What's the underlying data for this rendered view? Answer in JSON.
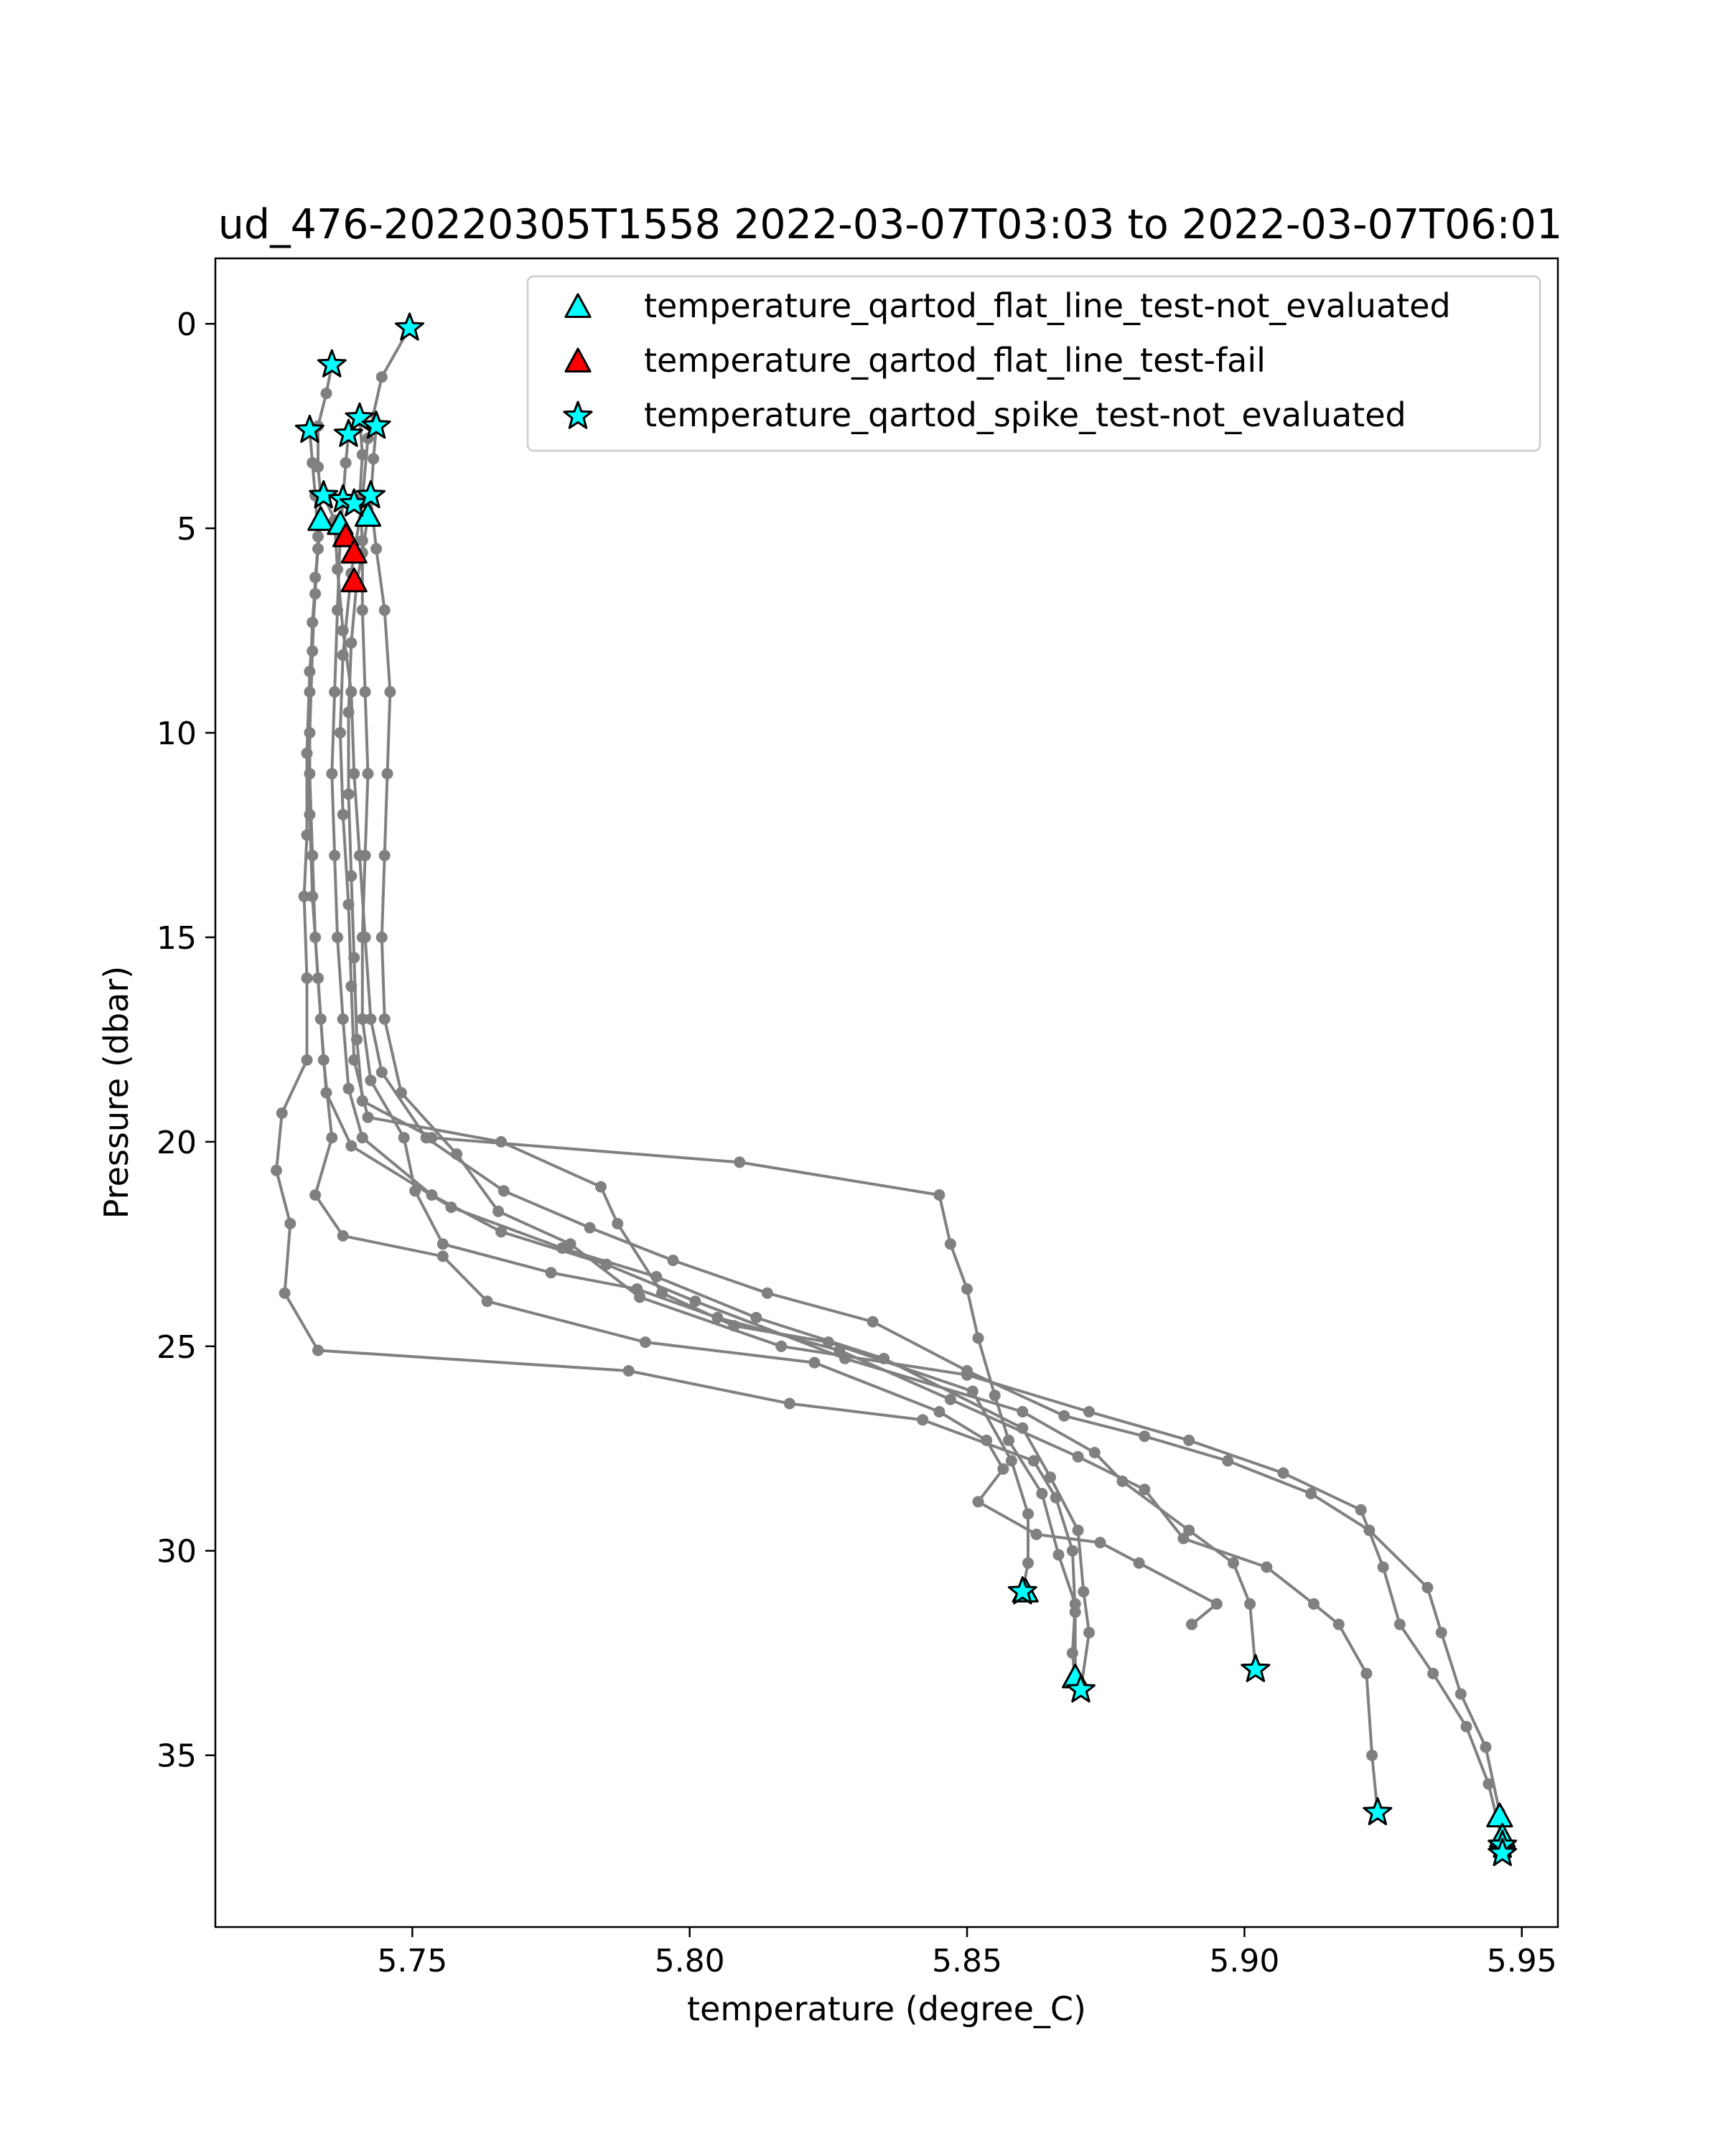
{
  "chart_data": {
    "type": "scatter",
    "title": "ud_476-20220305T1558 2022-03-07T03:03 to 2022-03-07T06:01",
    "xlabel": "temperature (degree_C)",
    "ylabel": "Pressure (dbar)",
    "xlim": [
      5.7145,
      5.9565
    ],
    "ylim": [
      39.2,
      -1.6
    ],
    "y_inverted": true,
    "grid": false,
    "legend_position": "upper-right",
    "x_ticks": [
      5.75,
      5.8,
      5.85,
      5.9,
      5.95
    ],
    "x_tick_labels": [
      "5.75",
      "5.80",
      "5.85",
      "5.90",
      "5.95"
    ],
    "y_ticks": [
      0,
      5,
      10,
      15,
      20,
      25,
      30,
      35
    ],
    "y_tick_labels": [
      "0",
      "5",
      "10",
      "15",
      "20",
      "25",
      "30",
      "35"
    ],
    "profile_color": "#808080",
    "profiles": [
      [
        [
          5.7495,
          0.1
        ],
        [
          5.7445,
          1.3
        ],
        [
          5.742,
          2.8
        ],
        [
          5.741,
          4.3
        ],
        [
          5.739,
          6.1
        ],
        [
          5.7375,
          8.1
        ],
        [
          5.737,
          10.0
        ],
        [
          5.7375,
          12.0
        ],
        [
          5.7385,
          14.2
        ],
        [
          5.739,
          16.2
        ],
        [
          5.7395,
          18.0
        ],
        [
          5.742,
          19.4
        ],
        [
          5.766,
          20.0
        ],
        [
          5.784,
          21.1
        ],
        [
          5.787,
          22.0
        ],
        [
          5.795,
          23.7
        ],
        [
          5.808,
          24.5
        ],
        [
          5.825,
          24.9
        ],
        [
          5.851,
          26.1
        ],
        [
          5.858,
          27.8
        ],
        [
          5.861,
          29.1
        ],
        [
          5.861,
          30.3
        ],
        [
          5.86,
          31.0
        ]
      ],
      [
        [
          5.7355,
          1.0
        ],
        [
          5.7345,
          1.7
        ],
        [
          5.733,
          2.5
        ],
        [
          5.733,
          3.5
        ],
        [
          5.7335,
          4.2
        ],
        [
          5.733,
          5.5
        ],
        [
          5.732,
          7.3
        ],
        [
          5.7315,
          9.0
        ],
        [
          5.7315,
          11.0
        ],
        [
          5.732,
          13.0
        ],
        [
          5.7325,
          15.0
        ],
        [
          5.7335,
          17.0
        ],
        [
          5.7345,
          18.8
        ],
        [
          5.739,
          20.1
        ],
        [
          5.757,
          21.6
        ],
        [
          5.777,
          22.6
        ],
        [
          5.794,
          23.3
        ],
        [
          5.812,
          24.3
        ],
        [
          5.835,
          25.3
        ],
        [
          5.86,
          27.0
        ],
        [
          5.865,
          28.2
        ],
        [
          5.87,
          29.5
        ],
        [
          5.871,
          31.0
        ],
        [
          5.872,
          32.0
        ],
        [
          5.8705,
          33.4
        ]
      ],
      [
        [
          5.7315,
          2.6
        ],
        [
          5.732,
          3.4
        ],
        [
          5.7325,
          4.2
        ],
        [
          5.733,
          5.2
        ],
        [
          5.7325,
          6.6
        ],
        [
          5.7315,
          8.5
        ],
        [
          5.731,
          10.5
        ],
        [
          5.731,
          12.5
        ],
        [
          5.7305,
          14.0
        ],
        [
          5.731,
          16.0
        ],
        [
          5.731,
          18.0
        ],
        [
          5.7265,
          19.3
        ],
        [
          5.7255,
          20.7
        ],
        [
          5.728,
          22.0
        ],
        [
          5.727,
          23.7
        ],
        [
          5.733,
          25.1
        ],
        [
          5.789,
          25.6
        ],
        [
          5.818,
          26.4
        ],
        [
          5.842,
          26.8
        ],
        [
          5.862,
          27.8
        ],
        [
          5.866,
          28.7
        ],
        [
          5.869,
          30.0
        ],
        [
          5.8695,
          31.5
        ],
        [
          5.8695,
          33.1
        ]
      ],
      [
        [
          5.7385,
          2.7
        ],
        [
          5.738,
          3.4
        ],
        [
          5.7375,
          4.3
        ],
        [
          5.737,
          5.2
        ],
        [
          5.7365,
          7.0
        ],
        [
          5.736,
          9.0
        ],
        [
          5.7355,
          11.0
        ],
        [
          5.736,
          13.0
        ],
        [
          5.7365,
          15.0
        ],
        [
          5.7375,
          17.0
        ],
        [
          5.7385,
          18.7
        ],
        [
          5.741,
          19.9
        ],
        [
          5.7535,
          21.3
        ],
        [
          5.766,
          22.2
        ],
        [
          5.785,
          23.0
        ],
        [
          5.801,
          23.9
        ],
        [
          5.828,
          25.3
        ],
        [
          5.86,
          26.6
        ],
        [
          5.873,
          27.6
        ],
        [
          5.878,
          28.3
        ],
        [
          5.89,
          29.5
        ],
        [
          5.898,
          30.3
        ],
        [
          5.901,
          31.3
        ],
        [
          5.902,
          32.9
        ]
      ],
      [
        [
          5.7405,
          2.3
        ],
        [
          5.741,
          3.2
        ],
        [
          5.7405,
          4.3
        ],
        [
          5.741,
          5.3
        ],
        [
          5.741,
          7.0
        ],
        [
          5.7415,
          9.0
        ],
        [
          5.742,
          11.0
        ],
        [
          5.7415,
          13.0
        ],
        [
          5.741,
          15.0
        ],
        [
          5.741,
          17.0
        ],
        [
          5.7425,
          18.5
        ],
        [
          5.7485,
          19.9
        ],
        [
          5.7505,
          21.2
        ],
        [
          5.7555,
          22.5
        ],
        [
          5.775,
          23.2
        ],
        [
          5.7905,
          23.6
        ],
        [
          5.805,
          24.3
        ],
        [
          5.827,
          25.1
        ],
        [
          5.847,
          26.3
        ],
        [
          5.87,
          27.7
        ],
        [
          5.882,
          28.5
        ],
        [
          5.889,
          29.7
        ],
        [
          5.904,
          30.4
        ],
        [
          5.9125,
          31.3
        ],
        [
          5.917,
          31.8
        ],
        [
          5.922,
          33.0
        ],
        [
          5.923,
          35.0
        ],
        [
          5.924,
          36.4
        ]
      ],
      [
        [
          5.7435,
          2.5
        ],
        [
          5.743,
          3.3
        ],
        [
          5.7425,
          4.3
        ],
        [
          5.7435,
          5.5
        ],
        [
          5.745,
          7.0
        ],
        [
          5.746,
          9.0
        ],
        [
          5.7455,
          11.0
        ],
        [
          5.745,
          13.0
        ],
        [
          5.7445,
          15.0
        ],
        [
          5.745,
          17.0
        ],
        [
          5.748,
          18.8
        ],
        [
          5.758,
          20.3
        ],
        [
          5.7655,
          21.7
        ],
        [
          5.7785,
          22.5
        ],
        [
          5.791,
          23.8
        ],
        [
          5.8165,
          25.0
        ],
        [
          5.85,
          25.7
        ],
        [
          5.872,
          26.6
        ],
        [
          5.89,
          27.3
        ],
        [
          5.907,
          28.1
        ],
        [
          5.921,
          29.0
        ],
        [
          5.925,
          30.4
        ],
        [
          5.928,
          31.8
        ],
        [
          5.934,
          33.0
        ],
        [
          5.94,
          34.3
        ],
        [
          5.944,
          35.7
        ],
        [
          5.9465,
          37.1
        ]
      ],
      [
        [
          5.734,
          4.2
        ],
        [
          5.736,
          4.8
        ],
        [
          5.7365,
          6.0
        ],
        [
          5.7375,
          7.5
        ],
        [
          5.739,
          9.0
        ],
        [
          5.7395,
          11.0
        ],
        [
          5.7405,
          13.0
        ],
        [
          5.7415,
          15.0
        ],
        [
          5.7425,
          17.0
        ],
        [
          5.7445,
          18.3
        ],
        [
          5.7525,
          19.9
        ],
        [
          5.7665,
          21.2
        ],
        [
          5.782,
          22.1
        ],
        [
          5.797,
          22.9
        ],
        [
          5.814,
          23.7
        ],
        [
          5.833,
          24.4
        ],
        [
          5.85,
          25.6
        ],
        [
          5.8675,
          26.7
        ],
        [
          5.882,
          27.2
        ],
        [
          5.897,
          27.8
        ],
        [
          5.912,
          28.6
        ],
        [
          5.9225,
          29.5
        ],
        [
          5.933,
          30.9
        ],
        [
          5.9355,
          32.0
        ],
        [
          5.939,
          33.5
        ],
        [
          5.9435,
          34.8
        ],
        [
          5.946,
          36.4
        ]
      ],
      [
        [
          5.7425,
          4.2
        ],
        [
          5.742,
          4.7
        ],
        [
          5.741,
          5.6
        ],
        [
          5.74,
          6.3
        ],
        [
          5.739,
          7.8
        ],
        [
          5.7385,
          9.5
        ],
        [
          5.7385,
          11.5
        ],
        [
          5.739,
          13.5
        ],
        [
          5.7395,
          15.5
        ],
        [
          5.74,
          17.5
        ],
        [
          5.741,
          19.0
        ],
        [
          5.7535,
          19.9
        ],
        [
          5.809,
          20.5
        ],
        [
          5.845,
          21.3
        ],
        [
          5.847,
          22.5
        ],
        [
          5.85,
          23.6
        ],
        [
          5.852,
          24.8
        ],
        [
          5.855,
          26.2
        ],
        [
          5.8575,
          27.3
        ],
        [
          5.8635,
          28.6
        ],
        [
          5.8665,
          30.1
        ],
        [
          5.8695,
          31.3
        ],
        [
          5.869,
          32.5
        ],
        [
          5.8695,
          33.2
        ]
      ],
      [
        [
          5.7335,
          4.8
        ],
        [
          5.7325,
          6.2
        ],
        [
          5.732,
          8.0
        ],
        [
          5.7315,
          10.0
        ],
        [
          5.7315,
          12.0
        ],
        [
          5.732,
          14.0
        ],
        [
          5.733,
          16.0
        ],
        [
          5.734,
          18.0
        ],
        [
          5.7355,
          19.9
        ],
        [
          5.7325,
          21.3
        ],
        [
          5.7375,
          22.3
        ],
        [
          5.7555,
          22.8
        ],
        [
          5.7635,
          23.9
        ],
        [
          5.792,
          24.9
        ],
        [
          5.8225,
          25.4
        ],
        [
          5.845,
          26.6
        ],
        [
          5.8535,
          27.3
        ],
        [
          5.8565,
          28.0
        ],
        [
          5.852,
          28.8
        ],
        [
          5.8625,
          29.6
        ],
        [
          5.874,
          29.8
        ],
        [
          5.881,
          30.3
        ],
        [
          5.895,
          31.3
        ],
        [
          5.8905,
          31.8
        ]
      ]
    ],
    "qartod_flat_line_not_evaluated": {
      "label": "temperature_qartod_flat_line_test-not_evaluated",
      "color": "#00ffff",
      "marker": "triangle",
      "points": [
        [
          5.7335,
          4.8
        ],
        [
          5.742,
          4.7
        ],
        [
          5.737,
          4.9
        ],
        [
          5.8605,
          31.0
        ],
        [
          5.8695,
          33.1
        ],
        [
          5.946,
          36.5
        ],
        [
          5.9465,
          37.0
        ]
      ]
    },
    "qartod_flat_line_fail": {
      "label": "temperature_qartod_flat_line_test-fail",
      "color": "#ff0000",
      "marker": "triangle",
      "points": [
        [
          5.738,
          5.2
        ],
        [
          5.7395,
          5.6
        ],
        [
          5.7395,
          6.3
        ]
      ]
    },
    "qartod_spike_not_evaluated": {
      "label": "temperature_qartod_spike_test-not_evaluated",
      "color": "#00ffff",
      "marker": "star",
      "points": [
        [
          5.7495,
          0.1
        ],
        [
          5.7355,
          1.0
        ],
        [
          5.7315,
          2.6
        ],
        [
          5.7385,
          2.7
        ],
        [
          5.7405,
          2.3
        ],
        [
          5.7435,
          2.5
        ],
        [
          5.734,
          4.2
        ],
        [
          5.7375,
          4.3
        ],
        [
          5.7395,
          4.4
        ],
        [
          5.7425,
          4.2
        ],
        [
          5.86,
          31.0
        ],
        [
          5.8705,
          33.4
        ],
        [
          5.902,
          32.9
        ],
        [
          5.924,
          36.4
        ],
        [
          5.9465,
          37.2
        ],
        [
          5.9465,
          37.4
        ]
      ]
    }
  }
}
